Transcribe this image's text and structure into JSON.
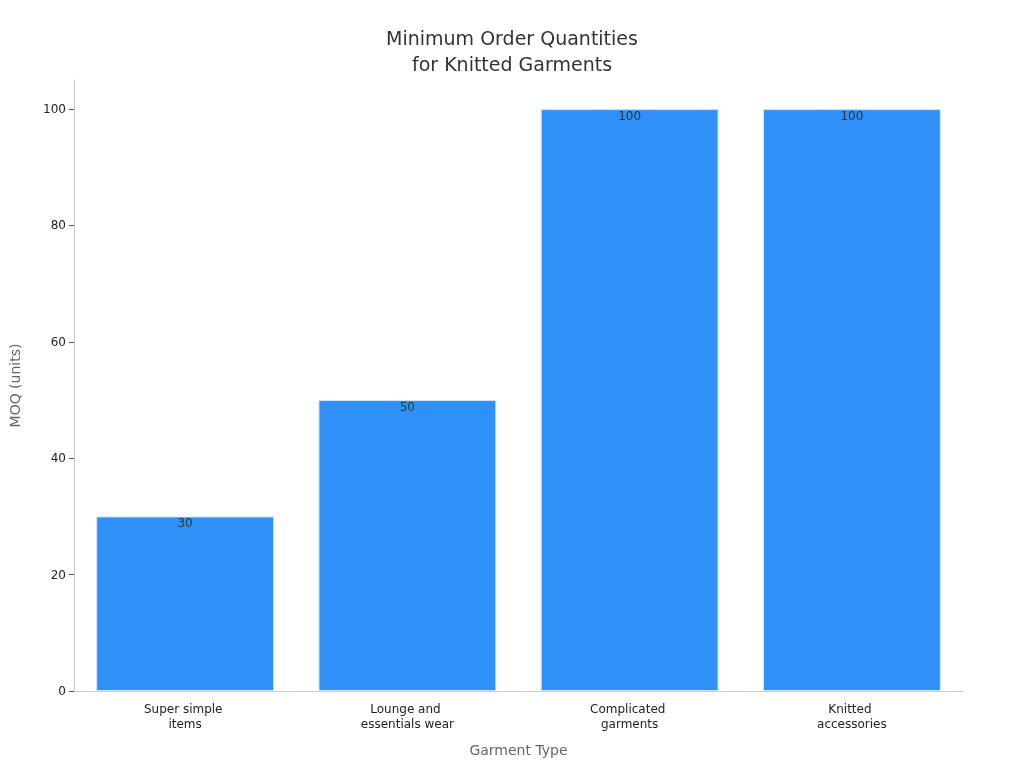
{
  "chart_data": {
    "type": "bar",
    "title": "Minimum Order Quantities\nfor Knitted Garments",
    "xlabel": "Garment Type",
    "ylabel": "MOQ (units)",
    "categories": [
      "Super simple items",
      "Lounge and essentials wear",
      "Complicated garments",
      "Knitted accessories"
    ],
    "values": [
      30,
      50,
      100,
      100
    ],
    "color": "#2f91f7",
    "ylim": [
      0,
      105
    ],
    "yticks": [
      0,
      20,
      40,
      60,
      80,
      100
    ],
    "grid": false,
    "data_labels": true
  }
}
